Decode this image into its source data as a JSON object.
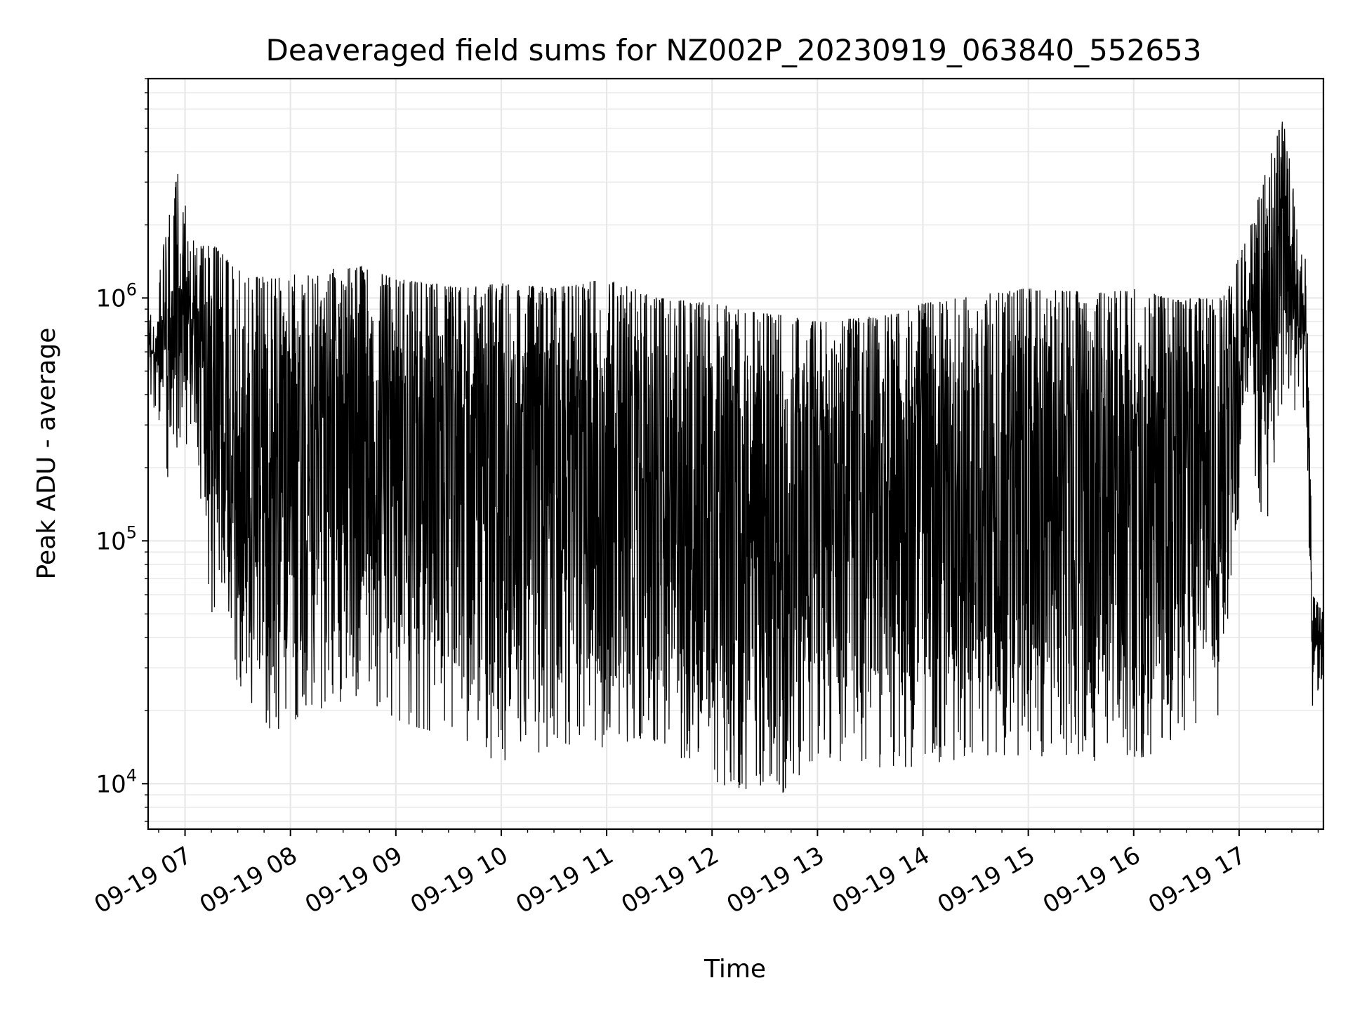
{
  "chart_data": {
    "type": "line",
    "title": "Deaveraged field sums for NZ002P_20230919_063840_552653",
    "xlabel": "Time",
    "ylabel": "Peak ADU - average",
    "yscale": "log",
    "grid": true,
    "line_color": "#000000",
    "grid_color": "#e6e6e6",
    "xlim": [
      "2023-09-19 06:39",
      "2023-09-19 17:48"
    ],
    "ylim": [
      6500,
      8000000
    ],
    "x_ticks": [
      {
        "value": "2023-09-19 07:00",
        "label": "09-19 07"
      },
      {
        "value": "2023-09-19 08:00",
        "label": "09-19 08"
      },
      {
        "value": "2023-09-19 09:00",
        "label": "09-19 09"
      },
      {
        "value": "2023-09-19 10:00",
        "label": "09-19 10"
      },
      {
        "value": "2023-09-19 11:00",
        "label": "09-19 11"
      },
      {
        "value": "2023-09-19 12:00",
        "label": "09-19 12"
      },
      {
        "value": "2023-09-19 13:00",
        "label": "09-19 13"
      },
      {
        "value": "2023-09-19 14:00",
        "label": "09-19 14"
      },
      {
        "value": "2023-09-19 15:00",
        "label": "09-19 15"
      },
      {
        "value": "2023-09-19 16:00",
        "label": "09-19 16"
      },
      {
        "value": "2023-09-19 17:00",
        "label": "09-19 17"
      }
    ],
    "y_ticks": [
      {
        "value": 10000,
        "base": "10",
        "exp": "4"
      },
      {
        "value": 100000,
        "base": "10",
        "exp": "5"
      },
      {
        "value": 1000000,
        "base": "10",
        "exp": "6"
      }
    ],
    "envelope": [
      {
        "x": "2023-09-19 06:39",
        "low": 420000,
        "high": 750000
      },
      {
        "x": "2023-09-19 06:50",
        "low": 170000,
        "high": 2000000
      },
      {
        "x": "2023-09-19 06:56",
        "low": 250000,
        "high": 3400000
      },
      {
        "x": "2023-09-19 07:05",
        "low": 250000,
        "high": 1700000
      },
      {
        "x": "2023-09-19 07:15",
        "low": 50000,
        "high": 1700000
      },
      {
        "x": "2023-09-19 07:30",
        "low": 26000,
        "high": 1300000
      },
      {
        "x": "2023-09-19 07:50",
        "low": 16000,
        "high": 1200000
      },
      {
        "x": "2023-09-19 08:15",
        "low": 20000,
        "high": 1300000
      },
      {
        "x": "2023-09-19 08:40",
        "low": 23000,
        "high": 1350000
      },
      {
        "x": "2023-09-19 09:00",
        "low": 18000,
        "high": 1200000
      },
      {
        "x": "2023-09-19 09:40",
        "low": 15000,
        "high": 1100000
      },
      {
        "x": "2023-09-19 10:00",
        "low": 11500,
        "high": 1150000
      },
      {
        "x": "2023-09-19 10:30",
        "low": 14000,
        "high": 1100000
      },
      {
        "x": "2023-09-19 11:00",
        "low": 14000,
        "high": 1200000
      },
      {
        "x": "2023-09-19 11:30",
        "low": 15000,
        "high": 1000000
      },
      {
        "x": "2023-09-19 12:00",
        "low": 10000,
        "high": 950000
      },
      {
        "x": "2023-09-19 12:40",
        "low": 9000,
        "high": 850000
      },
      {
        "x": "2023-09-19 13:00",
        "low": 13000,
        "high": 800000
      },
      {
        "x": "2023-09-19 13:40",
        "low": 11000,
        "high": 850000
      },
      {
        "x": "2023-09-19 14:00",
        "low": 12000,
        "high": 950000
      },
      {
        "x": "2023-09-19 14:40",
        "low": 13000,
        "high": 1050000
      },
      {
        "x": "2023-09-19 15:00",
        "low": 13000,
        "high": 1100000
      },
      {
        "x": "2023-09-19 15:40",
        "low": 12000,
        "high": 1050000
      },
      {
        "x": "2023-09-19 16:00",
        "low": 12500,
        "high": 1100000
      },
      {
        "x": "2023-09-19 16:20",
        "low": 14000,
        "high": 1000000
      },
      {
        "x": "2023-09-19 16:50",
        "low": 18000,
        "high": 1000000
      },
      {
        "x": "2023-09-19 17:05",
        "low": 300000,
        "high": 1800000
      },
      {
        "x": "2023-09-19 17:15",
        "low": 95000,
        "high": 3300000
      },
      {
        "x": "2023-09-19 17:25",
        "low": 400000,
        "high": 5500000
      },
      {
        "x": "2023-09-19 17:38",
        "low": 300000,
        "high": 1500000
      },
      {
        "x": "2023-09-19 17:42",
        "low": 18000,
        "high": 60000
      },
      {
        "x": "2023-09-19 17:48",
        "low": 30000,
        "high": 50000
      }
    ]
  }
}
